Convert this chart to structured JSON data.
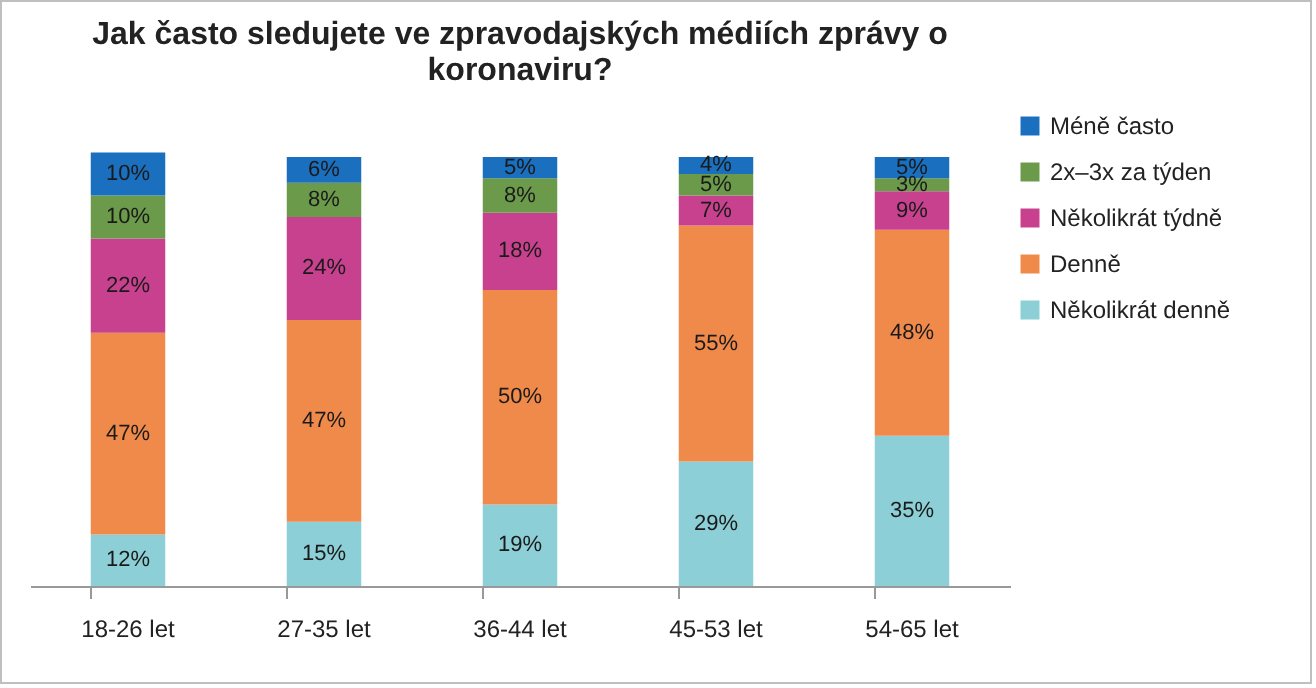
{
  "chart_data": {
    "type": "bar",
    "title": "Jak často sledujete ve zpravodajských médiích zprávy o koronaviru?",
    "stacked": true,
    "legend": "right",
    "tick_labels": "x",
    "categories": [
      "18-26 let",
      "27-35 let",
      "36-44 let",
      "45-53 let",
      "54-65 let"
    ],
    "series": [
      {
        "name": "Několikrát denně",
        "color": "#8ccfd6",
        "values": [
          12,
          15,
          19,
          29,
          35
        ],
        "value_labels": [
          "12%",
          "15%",
          "19%",
          "29%",
          "35%"
        ]
      },
      {
        "name": "Denně",
        "color": "#f08a4b",
        "values": [
          47,
          47,
          50,
          55,
          48
        ],
        "value_labels": [
          "47%",
          "47%",
          "50%",
          "55%",
          "48%"
        ]
      },
      {
        "name": "Několikrát týdně",
        "color": "#c8418e",
        "values": [
          22,
          24,
          18,
          7,
          9
        ],
        "value_labels": [
          "22%",
          "24%",
          "18%",
          "7%",
          "9%"
        ]
      },
      {
        "name": "2x–3x za týden",
        "color": "#6a9a4a",
        "values": [
          10,
          8,
          8,
          5,
          3
        ],
        "value_labels": [
          "10%",
          "8%",
          "8%",
          "5%",
          "3%"
        ]
      },
      {
        "name": "Méně často",
        "color": "#1a6fbe",
        "values": [
          10,
          6,
          5,
          4,
          5
        ],
        "value_labels": [
          "10%",
          "6%",
          "5%",
          "4%",
          "5%"
        ]
      }
    ]
  }
}
